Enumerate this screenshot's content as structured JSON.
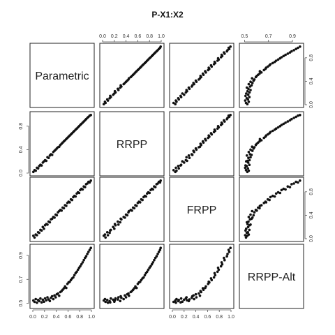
{
  "chart_data": {
    "type": "scatter",
    "title": "P-X1:X2",
    "variables": [
      "Parametric",
      "RRPP",
      "FRPP",
      "RRPP-Alt"
    ],
    "ranges": {
      "Parametric": [
        0.0,
        1.0
      ],
      "RRPP": [
        0.0,
        1.0
      ],
      "FRPP": [
        0.0,
        1.0
      ],
      "RRPP-Alt": [
        0.48,
        0.97
      ]
    },
    "ticks": {
      "unit": {
        "values": [
          0.0,
          0.2,
          0.4,
          0.6,
          0.8,
          1.0
        ],
        "labels": [
          "0.0",
          "0.2",
          "0.4",
          "0.6",
          "0.8",
          "1.0"
        ]
      },
      "unit_even": {
        "values": [
          0.0,
          0.4,
          0.8
        ],
        "labels": [
          "0.0",
          "0.4",
          "0.8"
        ]
      },
      "alt": {
        "values": [
          0.5,
          0.7,
          0.9
        ],
        "labels": [
          "0.5",
          "0.7",
          "0.9"
        ]
      }
    },
    "points": [
      [
        0.01,
        0.02,
        0.05,
        0.523
      ],
      [
        0.03,
        0.05,
        0.02,
        0.512
      ],
      [
        0.05,
        0.04,
        0.07,
        0.535
      ],
      [
        0.07,
        0.09,
        0.06,
        0.505
      ],
      [
        0.09,
        0.08,
        0.11,
        0.528
      ],
      [
        0.11,
        0.12,
        0.1,
        0.518
      ],
      [
        0.13,
        0.14,
        0.15,
        0.54
      ],
      [
        0.15,
        0.13,
        0.14,
        0.508
      ],
      [
        0.17,
        0.18,
        0.2,
        0.53
      ],
      [
        0.19,
        0.2,
        0.17,
        0.514
      ],
      [
        0.21,
        0.22,
        0.23,
        0.541
      ],
      [
        0.23,
        0.21,
        0.25,
        0.525
      ],
      [
        0.25,
        0.27,
        0.24,
        0.55
      ],
      [
        0.27,
        0.26,
        0.29,
        0.532
      ],
      [
        0.29,
        0.3,
        0.28,
        0.519
      ],
      [
        0.31,
        0.32,
        0.33,
        0.546
      ],
      [
        0.33,
        0.31,
        0.34,
        0.558
      ],
      [
        0.35,
        0.36,
        0.37,
        0.535
      ],
      [
        0.37,
        0.38,
        0.36,
        0.566
      ],
      [
        0.39,
        0.4,
        0.41,
        0.55
      ],
      [
        0.41,
        0.42,
        0.4,
        0.575
      ],
      [
        0.43,
        0.44,
        0.45,
        0.582
      ],
      [
        0.45,
        0.45,
        0.47,
        0.563
      ],
      [
        0.47,
        0.48,
        0.49,
        0.594
      ],
      [
        0.49,
        0.5,
        0.48,
        0.602
      ],
      [
        0.51,
        0.52,
        0.53,
        0.613
      ],
      [
        0.53,
        0.54,
        0.52,
        0.625
      ],
      [
        0.55,
        0.56,
        0.57,
        0.641
      ],
      [
        0.57,
        0.58,
        0.56,
        0.628
      ],
      [
        0.59,
        0.6,
        0.61,
        0.662
      ],
      [
        0.61,
        0.62,
        0.63,
        0.674
      ],
      [
        0.63,
        0.64,
        0.62,
        0.68
      ],
      [
        0.65,
        0.66,
        0.67,
        0.694
      ],
      [
        0.67,
        0.68,
        0.66,
        0.708
      ],
      [
        0.69,
        0.7,
        0.71,
        0.716
      ],
      [
        0.71,
        0.72,
        0.73,
        0.735
      ],
      [
        0.73,
        0.74,
        0.72,
        0.752
      ],
      [
        0.75,
        0.76,
        0.77,
        0.764
      ],
      [
        0.77,
        0.78,
        0.79,
        0.781
      ],
      [
        0.79,
        0.8,
        0.78,
        0.797
      ],
      [
        0.81,
        0.82,
        0.83,
        0.809
      ],
      [
        0.83,
        0.84,
        0.85,
        0.826
      ],
      [
        0.85,
        0.86,
        0.84,
        0.842
      ],
      [
        0.87,
        0.88,
        0.89,
        0.861
      ],
      [
        0.89,
        0.9,
        0.88,
        0.879
      ],
      [
        0.91,
        0.92,
        0.93,
        0.893
      ],
      [
        0.93,
        0.94,
        0.94,
        0.912
      ],
      [
        0.95,
        0.96,
        0.97,
        0.93
      ],
      [
        0.97,
        0.98,
        0.96,
        0.946
      ],
      [
        0.99,
        0.99,
        0.99,
        0.963
      ]
    ]
  }
}
